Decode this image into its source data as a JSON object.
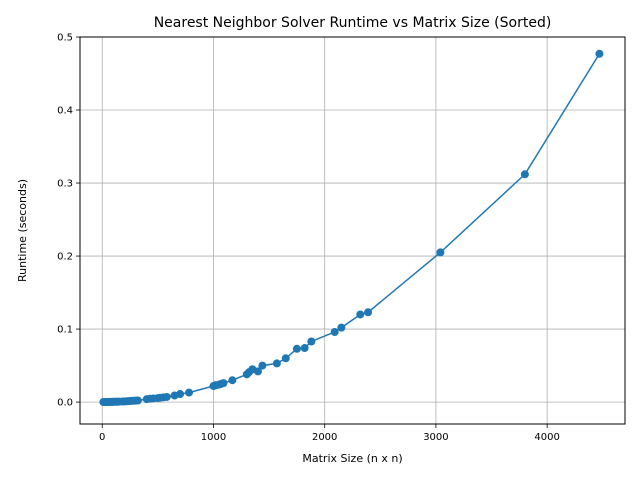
{
  "chart_data": {
    "type": "line",
    "title": "Nearest Neighbor Solver Runtime vs Matrix Size (Sorted)",
    "xlabel": "Matrix Size (n x n)",
    "ylabel": "Runtime (seconds)",
    "xlim": [
      -200,
      4700
    ],
    "ylim": [
      -0.03,
      0.5
    ],
    "xticks": [
      0,
      1000,
      2000,
      3000,
      4000
    ],
    "xtick_labels": [
      "0",
      "1000",
      "2000",
      "3000",
      "4000"
    ],
    "yticks": [
      0.0,
      0.1,
      0.2,
      0.3,
      0.4,
      0.5
    ],
    "ytick_labels": [
      "0.0",
      "0.1",
      "0.2",
      "0.3",
      "0.4",
      "0.5"
    ],
    "grid": true,
    "color": "#1f77b4",
    "marker": "circle",
    "series": [
      {
        "x": [
          10,
          20,
          30,
          40,
          50,
          60,
          70,
          80,
          90,
          100,
          110,
          120,
          130,
          140,
          150,
          180,
          200,
          220,
          240,
          260,
          280,
          300,
          320,
          400,
          430,
          460,
          500,
          520,
          550,
          580,
          650,
          700,
          780,
          1000,
          1020,
          1050,
          1070,
          1090,
          1170,
          1300,
          1320,
          1350,
          1400,
          1440,
          1570,
          1650,
          1750,
          1820,
          1880,
          2090,
          2150,
          2320,
          2390,
          3040,
          3800,
          4470
        ],
        "y": [
          0.0001,
          0.0001,
          0.0001,
          0.0002,
          0.0002,
          0.0002,
          0.0003,
          0.0003,
          0.0003,
          0.0004,
          0.0004,
          0.0005,
          0.0005,
          0.0005,
          0.0006,
          0.0008,
          0.001,
          0.0012,
          0.0014,
          0.0016,
          0.0018,
          0.002,
          0.0022,
          0.004,
          0.0045,
          0.005,
          0.0055,
          0.006,
          0.0065,
          0.007,
          0.009,
          0.011,
          0.013,
          0.022,
          0.023,
          0.024,
          0.025,
          0.026,
          0.03,
          0.038,
          0.041,
          0.045,
          0.042,
          0.05,
          0.053,
          0.06,
          0.073,
          0.074,
          0.083,
          0.096,
          0.102,
          0.12,
          0.123,
          0.205,
          0.312,
          0.477
        ]
      }
    ]
  }
}
